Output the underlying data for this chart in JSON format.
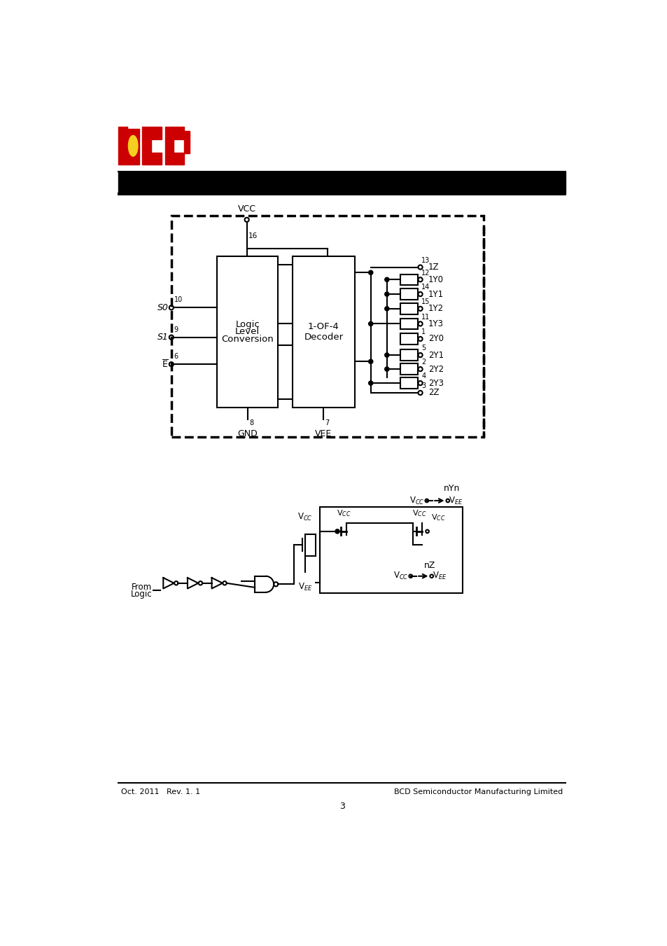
{
  "page_width": 9.54,
  "page_height": 13.51,
  "bg_color": "#ffffff",
  "footer_left": "Oct. 2011   Rev. 1. 1",
  "footer_right": "BCD Semiconductor Manufacturing Limited",
  "footer_page": "3"
}
